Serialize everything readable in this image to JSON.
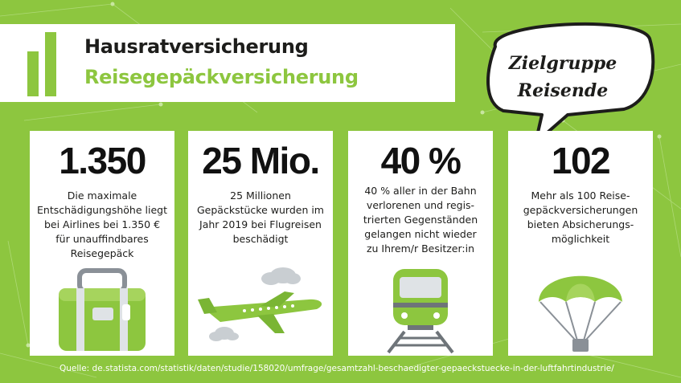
{
  "header": {
    "title_line1": "Hausratversicherung",
    "title_line2": "Reisegepäckversicherung"
  },
  "speech_bubble": {
    "line1": "Zielgruppe",
    "line2": "Reisende"
  },
  "cards": [
    {
      "value": "1.350",
      "text": [
        "Die maximale",
        "Entschädigungshöhe liegt",
        "bei Airlines bei 1.350 €",
        "für unauffindbares",
        "Reisegepäck"
      ],
      "icon": "suitcase-icon"
    },
    {
      "value": "25 Mio.",
      "text": [
        "25 Millionen",
        "Gepäckstücke wurden im",
        "Jahr 2019 bei Flugreisen",
        "beschädigt"
      ],
      "icon": "airplane-icon"
    },
    {
      "value": "40 %",
      "text": [
        "40 % aller in der Bahn",
        "verlorenen und regis-",
        "trierten Gegenständen",
        "gelangen nicht wieder",
        "zu Ihrem/r Besitzer:in"
      ],
      "icon": "train-icon"
    },
    {
      "value": "102",
      "text": [
        "Mehr als 100 Reise-",
        "gepäckversicherungen",
        "bieten Absicherungs-",
        "möglichkeit"
      ],
      "icon": "parachute-icon"
    }
  ],
  "source": "Quelle: de.statista.com/statistik/daten/studie/158020/umfrage/gesamtzahl-beschaedigter-gepaeckstuecke-in-der-luftfahrtindustrie/",
  "colors": {
    "background": "#8dc63f",
    "accent": "#8dc63f",
    "text": "#1d1d1b",
    "card": "#ffffff"
  }
}
